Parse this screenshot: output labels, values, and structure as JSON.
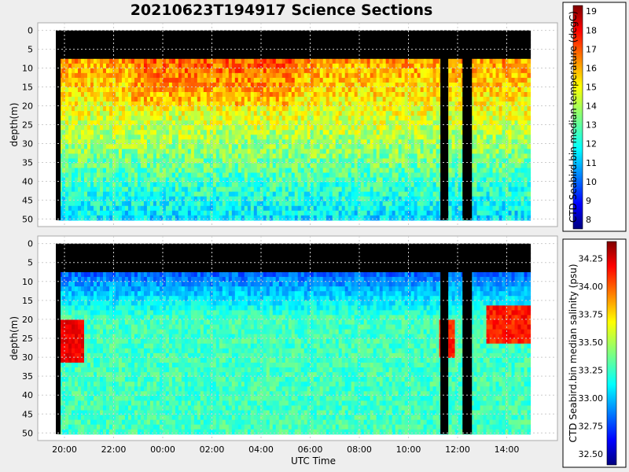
{
  "title": "20210623T194917 Science Sections",
  "chart_data": [
    {
      "type": "heatmap",
      "panel": "temperature",
      "ylabel": "depth(m)",
      "xlabel": "",
      "colorbar_label": "CTD Seabird.bin median temperature (degC)",
      "y_ticks": [
        "0",
        "5",
        "10",
        "15",
        "20",
        "25",
        "30",
        "35",
        "40",
        "45",
        "50"
      ],
      "ylim": [
        52,
        -2
      ],
      "y_inverted": true,
      "x_ticks": [
        "20:00",
        "22:00",
        "00:00",
        "02:00",
        "04:00",
        "06:00",
        "08:00",
        "10:00",
        "12:00",
        "14:00"
      ],
      "colorbar_ticks": [
        "8",
        "9",
        "10",
        "11",
        "12",
        "13",
        "14",
        "15",
        "16",
        "17",
        "18",
        "19"
      ],
      "clim": [
        7.5,
        19.3
      ],
      "colormap": "jet",
      "grid": true,
      "approx_values": {
        "surface_0_to_7m": "no data (black)",
        "depth_8_to_20m": "15-17",
        "depth_20_to_35m": "13-14",
        "depth_35_to_50m": "10-12"
      }
    },
    {
      "type": "heatmap",
      "panel": "salinity",
      "ylabel": "depth(m)",
      "xlabel": "UTC Time",
      "colorbar_label": "CTD Seabird.bin median salinity (psu)",
      "y_ticks": [
        "0",
        "5",
        "10",
        "15",
        "20",
        "25",
        "30",
        "35",
        "40",
        "45",
        "50"
      ],
      "ylim": [
        52,
        -2
      ],
      "y_inverted": true,
      "x_ticks": [
        "20:00",
        "22:00",
        "00:00",
        "02:00",
        "04:00",
        "06:00",
        "08:00",
        "10:00",
        "12:00",
        "14:00"
      ],
      "colorbar_ticks": [
        "32.50",
        "32.75",
        "33.00",
        "33.25",
        "33.50",
        "33.75",
        "34.00",
        "34.25"
      ],
      "clim": [
        32.4,
        34.4
      ],
      "colormap": "jet",
      "grid": true,
      "approx_values": {
        "surface_0_to_7m": "no data (black)",
        "depth_8_to_15m": "32.7-33.0",
        "depth_15_to_50m": "33.0-33.4",
        "high_salinity_lens_20_to_30m_near_20:00": "33.9-34.2",
        "high_salinity_lens_17_to_25m_near_13:00_to_14:30": "33.8-34.1"
      }
    }
  ]
}
